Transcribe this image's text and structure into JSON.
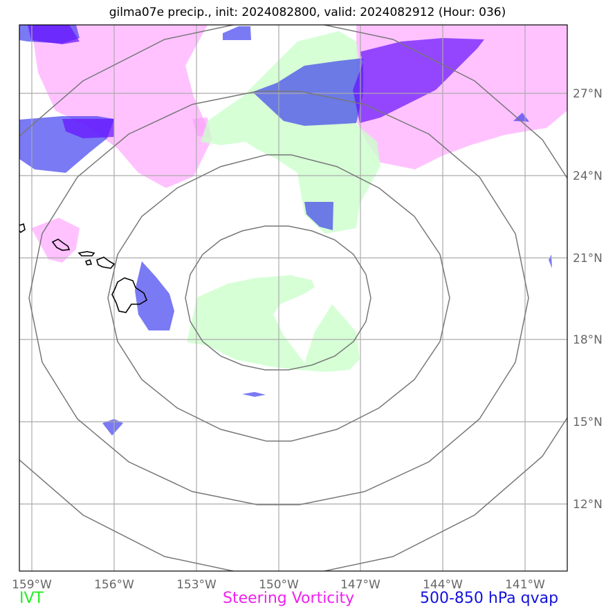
{
  "title": "gilma07e precip., init: 2024082800, valid: 2024082912 (Hour: 036)",
  "axes": {
    "lon_labels": [
      "159°W",
      "156°W",
      "153°W",
      "150°W",
      "147°W",
      "144°W",
      "141°W"
    ],
    "lat_labels": [
      "27°N",
      "24°N",
      "21°N",
      "18°N",
      "15°N",
      "12°N"
    ]
  },
  "legend": {
    "ivt": {
      "label": "IVT",
      "color": "#22ee22"
    },
    "vorticity": {
      "label": "Steering Vorticity",
      "color": "#ee22ee"
    },
    "qvap": {
      "label": "500-850 hPa qvap",
      "color": "#1111dd"
    }
  },
  "fields": {
    "ivt_fill": "#ccffcc",
    "vorticity_fill": "#ff99ff",
    "qvap_fill": "#3333ee",
    "qvap_strong_fill": "#6611ff"
  },
  "map_style": {
    "gridlines": true,
    "grid_color": "#aaaaaa",
    "range_ring_color": "#777777",
    "range_ring_count": 4,
    "coastline_color": "#000000"
  }
}
